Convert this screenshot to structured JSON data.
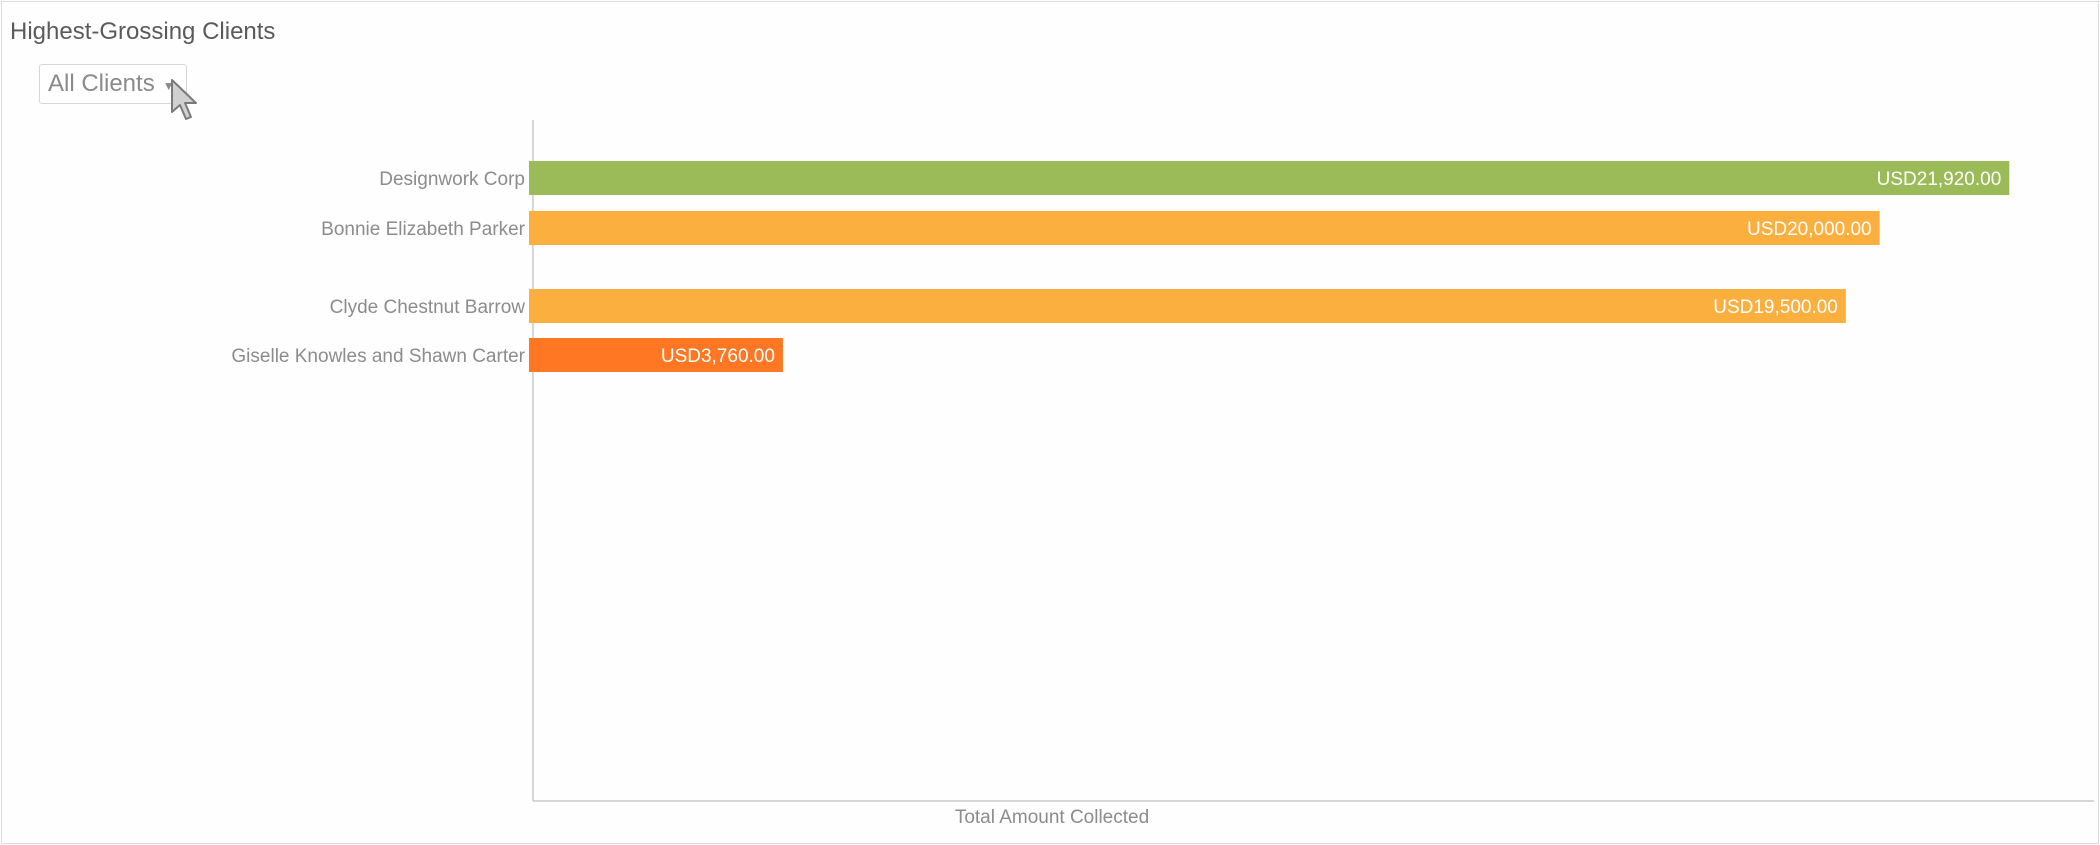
{
  "widget": {
    "title": "Highest-Grossing Clients",
    "filter": {
      "selected": "All Clients"
    }
  },
  "chart_data": {
    "type": "bar",
    "orientation": "horizontal",
    "categories": [
      "Designwork Corp",
      "Bonnie Elizabeth Parker",
      "Clyde Chestnut Barrow",
      "Giselle Knowles and Shawn Carter"
    ],
    "values": [
      21920,
      20000,
      19500,
      3760
    ],
    "value_labels": [
      "USD21,920.00",
      "USD20,000.00",
      "USD19,500.00",
      "USD3,760.00"
    ],
    "colors": [
      "#9bbb59",
      "#fbaf3f",
      "#fbaf3f",
      "#ff7722"
    ],
    "xlabel": "Total Amount Collected",
    "ylabel": "",
    "xlim": [
      0,
      23100
    ],
    "grid": false,
    "legend": "none"
  }
}
